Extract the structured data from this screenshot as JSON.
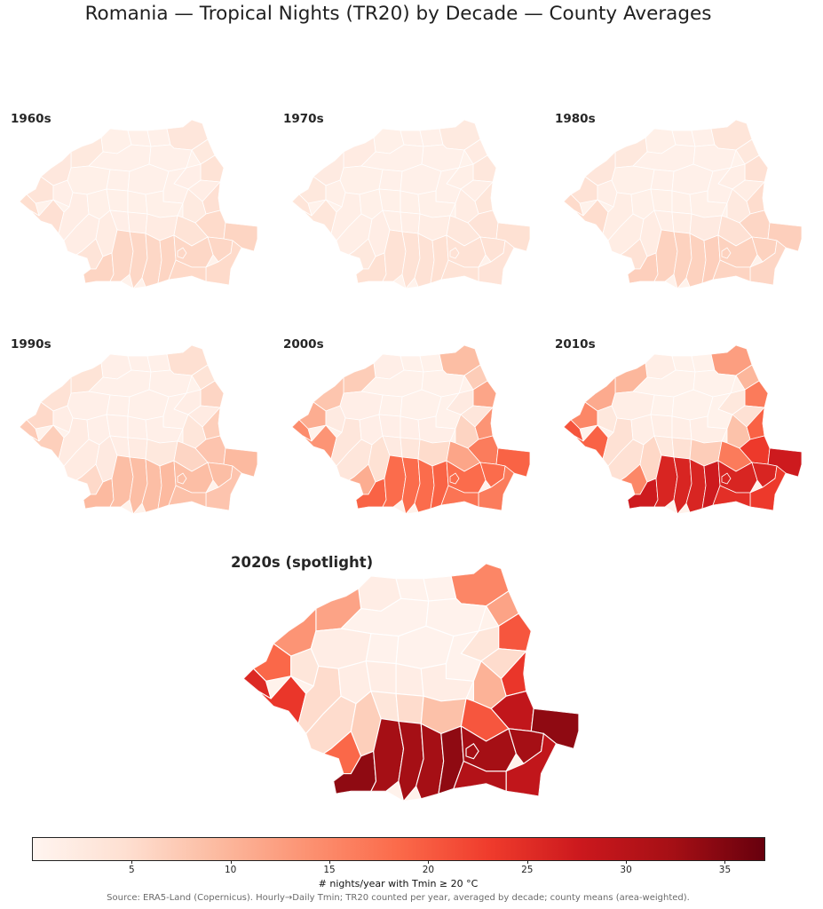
{
  "title": "Romania — Tropical Nights (TR20) by Decade — County Averages",
  "panels": [
    {
      "label": "1960s",
      "level": 0.15
    },
    {
      "label": "1970s",
      "level": 0.1
    },
    {
      "label": "1980s",
      "level": 0.17
    },
    {
      "label": "1990s",
      "level": 0.25
    },
    {
      "label": "2000s",
      "level": 0.55
    },
    {
      "label": "2010s",
      "level": 0.8
    }
  ],
  "spotlight": {
    "label": "2020s (spotlight)",
    "level": 1.0
  },
  "colorbar": {
    "min": 0,
    "max": 37,
    "ticks": [
      "5",
      "10",
      "15",
      "20",
      "25",
      "30",
      "35"
    ],
    "label": "# nights/year with Tmin ≥ 20 °C",
    "colors": [
      "#fff5f0",
      "#fee0d2",
      "#fcbba1",
      "#fc9272",
      "#fb6a4a",
      "#ef3b2c",
      "#cb181d",
      "#a50f15",
      "#67000d"
    ]
  },
  "source": "Source: ERA5-Land (Copernicus). Hourly→Daily Tmin; TR20 counted per year, averaged by decade; county means (area-weighted)."
}
